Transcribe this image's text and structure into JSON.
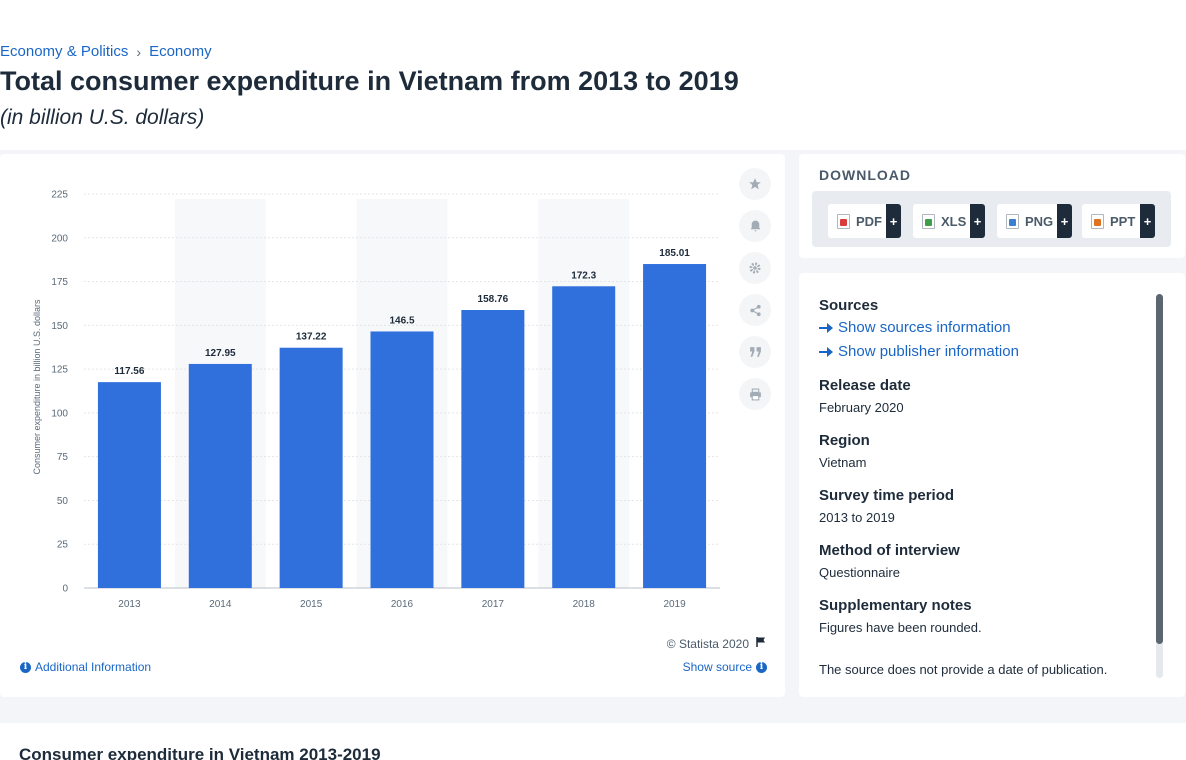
{
  "breadcrumb": {
    "items": [
      "Economy & Politics",
      "Economy"
    ],
    "separator": "›"
  },
  "page": {
    "title": "Total consumer expenditure in Vietnam from 2013 to 2019",
    "subtitle": "(in billion U.S. dollars)"
  },
  "chart_data": {
    "type": "bar",
    "categories": [
      "2013",
      "2014",
      "2015",
      "2016",
      "2017",
      "2018",
      "2019"
    ],
    "values": [
      117.56,
      127.95,
      137.22,
      146.5,
      158.76,
      172.3,
      185.01
    ],
    "data_labels": [
      "117.56",
      "127.95",
      "137.22",
      "146.5",
      "158.76",
      "172.3",
      "185.01"
    ],
    "title": "",
    "xlabel": "",
    "ylabel": "Consumer expenditure in billion U.S. dollars",
    "ylim": [
      0,
      225
    ],
    "yticks": [
      0,
      25,
      50,
      75,
      100,
      125,
      150,
      175,
      200,
      225
    ],
    "grid": true,
    "legend": "none",
    "bar_color": "#3070dc",
    "band_color": "#f7f8fa"
  },
  "chart_footer": {
    "credit": "© Statista 2020",
    "additional_info": "Additional Information",
    "show_source": "Show source"
  },
  "tools": [
    "star-icon",
    "bell-icon",
    "gear-icon",
    "share-icon",
    "quote-icon",
    "print-icon"
  ],
  "download": {
    "title": "DOWNLOAD",
    "buttons": [
      {
        "label": "PDF",
        "plus": "+"
      },
      {
        "label": "XLS",
        "plus": "+"
      },
      {
        "label": "PNG",
        "plus": "+"
      },
      {
        "label": "PPT",
        "plus": "+"
      }
    ]
  },
  "info": {
    "sources_label": "Sources",
    "show_sources": "Show sources information",
    "show_publisher": "Show publisher information",
    "release_date_label": "Release date",
    "release_date": "February 2020",
    "region_label": "Region",
    "region": "Vietnam",
    "survey_period_label": "Survey time period",
    "survey_period": "2013 to 2019",
    "method_label": "Method of interview",
    "method": "Questionnaire",
    "notes_label": "Supplementary notes",
    "note_1": "Figures have been rounded.",
    "note_2": "The source does not provide a date of publication."
  },
  "bottom": {
    "title": "Consumer expenditure in Vietnam 2013-2019"
  },
  "colors": {
    "accent": "#1a66c6",
    "bar": "#3070dc",
    "text": "#1d2b3a"
  }
}
